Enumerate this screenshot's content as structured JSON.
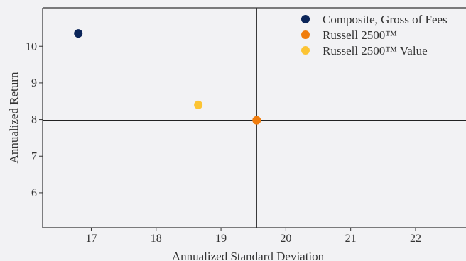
{
  "chart_data": {
    "type": "scatter",
    "title": "",
    "xlabel": "Annualized Standard Deviation",
    "ylabel": "Annualized Return",
    "xlim": [
      16.25,
      22.8
    ],
    "ylim": [
      5.05,
      11.05
    ],
    "xticks": [
      17,
      18,
      19,
      20,
      21,
      22
    ],
    "yticks": [
      6,
      7,
      8,
      9,
      10
    ],
    "legend_position": "top-right",
    "grid": false,
    "reference_lines": {
      "x": 19.55,
      "y": 7.98
    },
    "series": [
      {
        "name": "Composite, Gross of Fees",
        "color": "#0b2559",
        "points": [
          {
            "x": 16.8,
            "y": 10.35
          }
        ]
      },
      {
        "name": "Russell 2500™",
        "color": "#f07c0c",
        "points": [
          {
            "x": 19.55,
            "y": 7.98
          }
        ]
      },
      {
        "name": "Russell 2500™ Value",
        "color": "#fcc433",
        "points": [
          {
            "x": 18.65,
            "y": 8.4
          }
        ]
      }
    ]
  }
}
